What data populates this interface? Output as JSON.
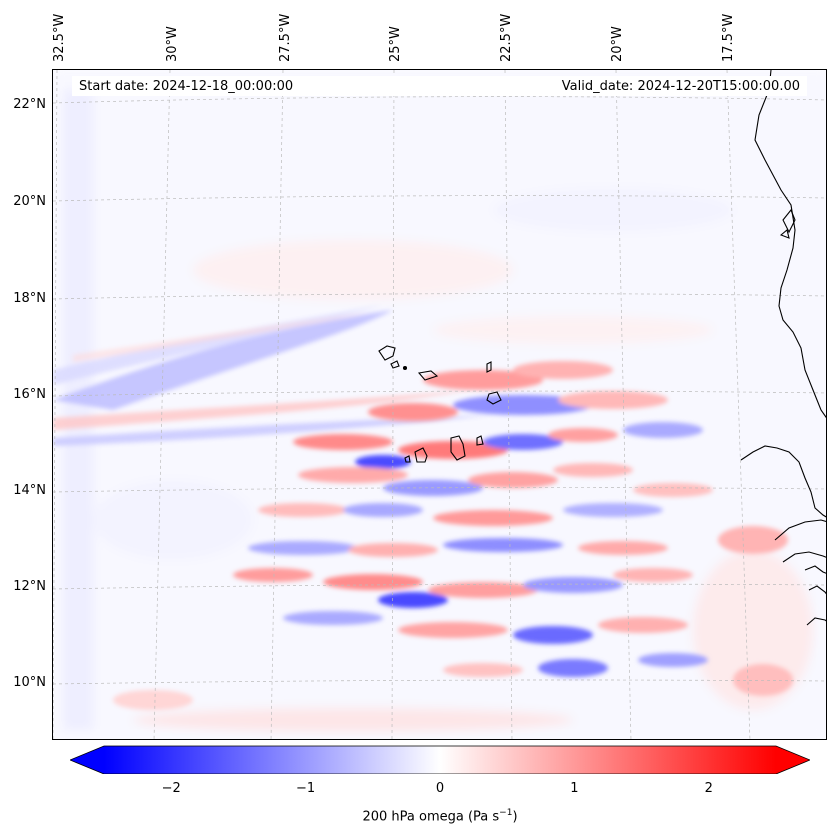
{
  "map": {
    "start_date": "Start date: 2024-12-18_00:00:00",
    "valid_date": "Valid_date: 2024-12-20T15:00:00.00",
    "longitude_labels": [
      "32.5°W",
      "30°W",
      "27.5°W",
      "25°W",
      "22.5°W",
      "20°W",
      "17.5°W"
    ],
    "latitude_labels": [
      "22°N",
      "20°N",
      "18°N",
      "16°N",
      "14°N",
      "12°N",
      "10°N"
    ],
    "extent": {
      "lon_min": -32.8,
      "lon_max": -15.7,
      "lat_min": 8.9,
      "lat_max": 22.8
    },
    "coastline_color": "#000000",
    "gridline_color": "#bbbbbb"
  },
  "colorbar": {
    "ticks": [
      "−2",
      "−1",
      "0",
      "1",
      "2"
    ],
    "tick_values": [
      -2,
      -1,
      0,
      1,
      2
    ],
    "range": [
      -2.5,
      2.5
    ],
    "label_main": "200 hPa omega (Pa s",
    "label_sup": "−1",
    "label_end": ")",
    "colormap": "bwr",
    "color_negative": "#0000ff",
    "color_zero": "#ffffff",
    "color_positive": "#ff0000"
  }
}
